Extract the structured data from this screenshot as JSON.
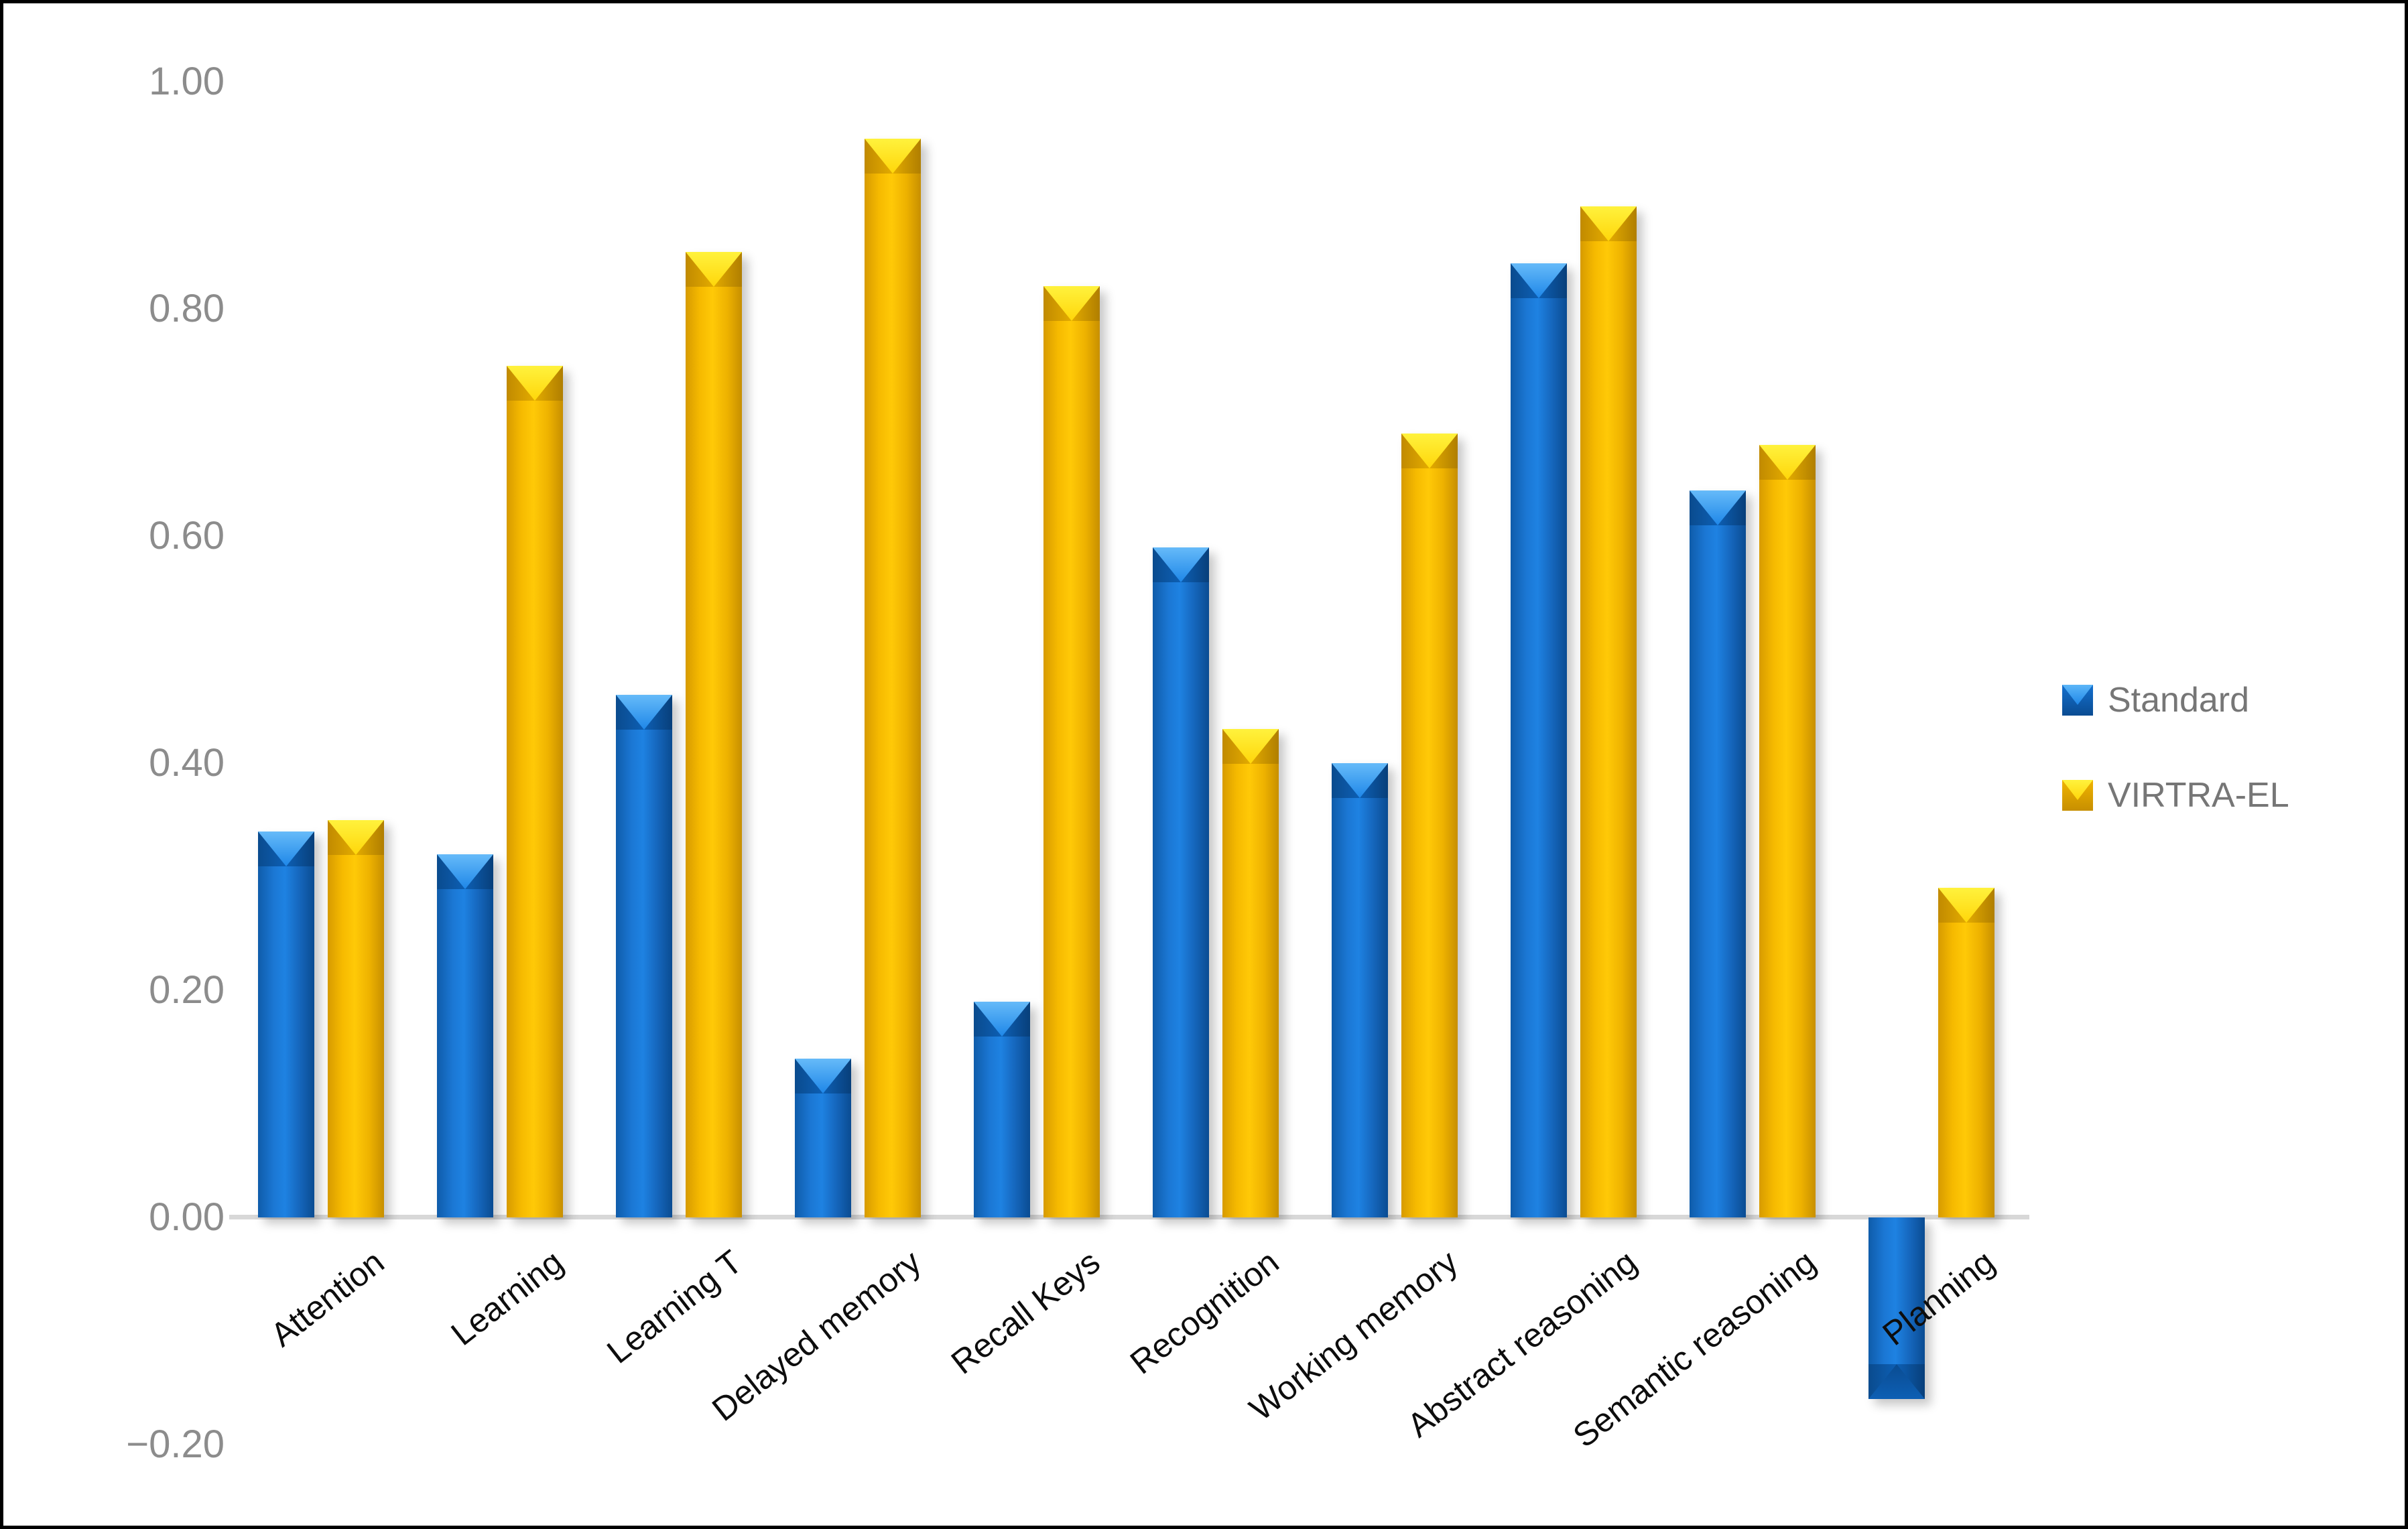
{
  "chart_data": {
    "type": "bar",
    "title": "",
    "xlabel": "",
    "ylabel": "",
    "ylim": [
      -0.2,
      1.0
    ],
    "grid": false,
    "legend_position": "right",
    "categories": [
      "Attention",
      "Learning",
      "Learning T",
      "Delayed memory",
      "Recall Keys",
      "Recognition",
      "Working memory",
      "Abstract reasoning",
      "Semantic reasoning",
      "Planning"
    ],
    "series": [
      {
        "name": "Standard",
        "color": "#1470CF",
        "values": [
          0.34,
          0.32,
          0.46,
          0.14,
          0.19,
          0.59,
          0.4,
          0.84,
          0.64,
          -0.16
        ]
      },
      {
        "name": "VIRTRA-EL",
        "color": "#FFC000",
        "values": [
          0.35,
          0.75,
          0.85,
          0.95,
          0.82,
          0.43,
          0.69,
          0.89,
          0.68,
          0.29
        ]
      }
    ],
    "yticks": [
      {
        "label": "1.00",
        "value": 1.0
      },
      {
        "label": "0.80",
        "value": 0.8
      },
      {
        "label": "0.60",
        "value": 0.6
      },
      {
        "label": "0.40",
        "value": 0.4
      },
      {
        "label": "0.20",
        "value": 0.2
      },
      {
        "label": "0.00",
        "value": 0.0
      },
      {
        "label": "−0.20",
        "value": -0.2
      }
    ],
    "axis_text_color": "#8C8C8C",
    "category_text_color": "#0D0D0D",
    "baseline_color": "#D8D8D8"
  },
  "legend": {
    "items": [
      {
        "label": "Standard"
      },
      {
        "label": "VIRTRA-EL"
      }
    ]
  }
}
